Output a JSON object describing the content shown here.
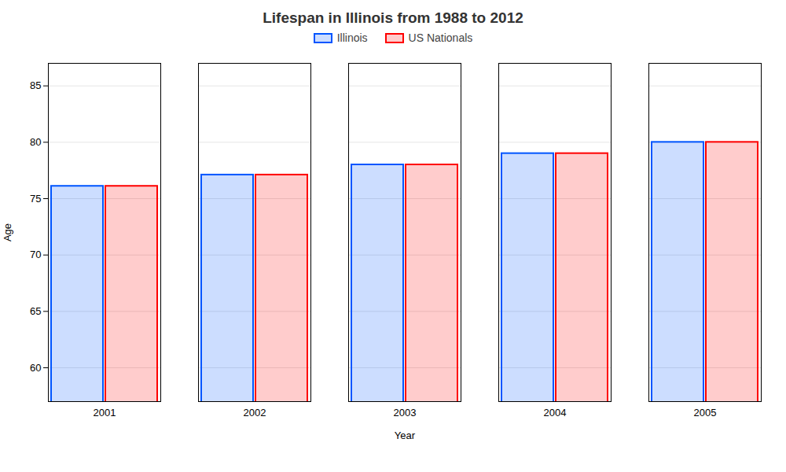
{
  "chart_data": {
    "type": "bar",
    "title": "Lifespan in Illinois from 1988 to 2012",
    "xlabel": "Year",
    "ylabel": "Age",
    "categories": [
      "2001",
      "2002",
      "2003",
      "2004",
      "2005"
    ],
    "series": [
      {
        "name": "Illinois",
        "color": "#0055ff",
        "values": [
          76.1,
          77.1,
          78.0,
          79.0,
          80.0
        ]
      },
      {
        "name": "US Nationals",
        "color": "#ff0000",
        "values": [
          76.1,
          77.1,
          78.0,
          79.0,
          80.0
        ]
      }
    ],
    "ylim": [
      57,
      87
    ],
    "yticks": [
      60,
      65,
      70,
      75,
      80,
      85
    ],
    "grid": true,
    "legend": "top"
  }
}
